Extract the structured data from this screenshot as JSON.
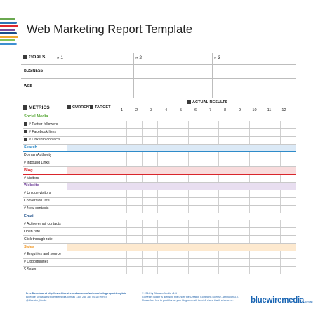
{
  "title": "Web Marketing Report Template",
  "cable_colors": [
    "#6aa84f",
    "#2e75b6",
    "#e0282e",
    "#7a4a9a",
    "#1a4f8a",
    "#f0a830",
    "#7fc35a",
    "#3d8fd1"
  ],
  "goals": {
    "header": "GOALS",
    "goal_labels": [
      "» 1",
      "» 2",
      "» 3"
    ],
    "rows": [
      "BUSINESS",
      "WEB"
    ]
  },
  "metrics": {
    "header": "METRICS",
    "current": "CURRENT",
    "target": "TARGET",
    "actual": "ACTUAL RESULTS",
    "months": [
      "1",
      "2",
      "3",
      "4",
      "5",
      "6",
      "7",
      "8",
      "9",
      "10",
      "11",
      "12"
    ],
    "sections": [
      {
        "name": "Social Media",
        "color": "#5aa838",
        "band": "",
        "rows": [
          "# Twitter followers",
          "# Facebook likes",
          "# LinkedIn contacts"
        ]
      },
      {
        "name": "Search",
        "color": "#2e8bc9",
        "band": "#dbe9f6",
        "rows": [
          "Domain Authority",
          "# Inbound Links"
        ]
      },
      {
        "name": "Blog",
        "color": "#d9252b",
        "band": "#f8dbdc",
        "rows": [
          "# Visitors"
        ]
      },
      {
        "name": "Website",
        "color": "#7b4ea0",
        "band": "#e8def0",
        "rows": [
          "# Unique visitors",
          "Conversion rate",
          "# New contacts"
        ]
      },
      {
        "name": "Email",
        "color": "#1d4f8a",
        "band": "",
        "rows": [
          "# Active email contacts",
          "Open rate",
          "Click through rate"
        ]
      },
      {
        "name": "Sales",
        "color": "#f09a2a",
        "band": "#fde9cf",
        "rows": [
          "# Enquiries and source",
          "# Opportunities",
          "$ Sales"
        ]
      }
    ]
  },
  "footer": {
    "left": [
      "Free Download at http://www.bluewiremedia.com.au/web-marketing-report-template",
      "Bluewire Media www.bluewiremedia.com.au 1300 258 384 (BLUEWIRE)",
      "@Bluewire_Media"
    ],
    "middle": [
      "© 2014 by Bluewire Media   v1.4",
      "Copyright holder is licensing this under the Creative Commons License, Attribution 3.0.",
      "Please feel free to post this on your blog or email, tweet & share it with whomever."
    ],
    "logo": "bluewiremedia",
    "logo_sub": ".com.au"
  }
}
